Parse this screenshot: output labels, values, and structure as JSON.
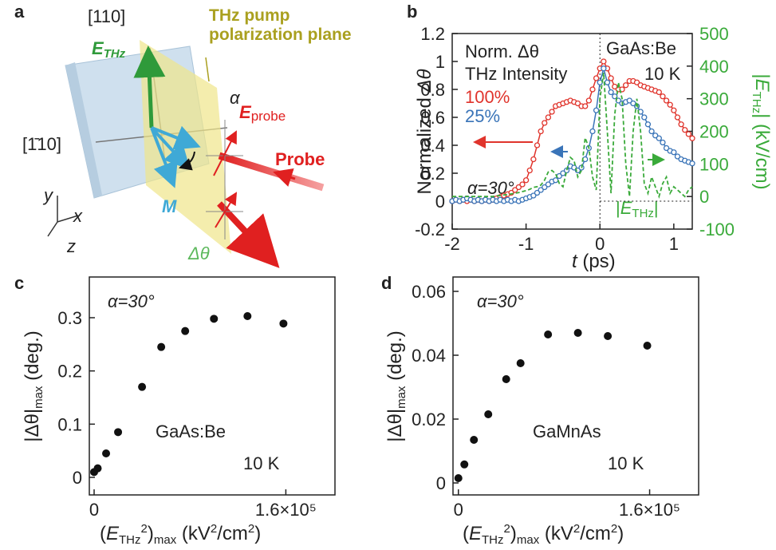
{
  "diagram": {
    "panel": "a",
    "labels": {
      "dir110": "[110]",
      "e": "E",
      "thz": "THz",
      "pump1": "THz pump",
      "pump2": "polarization plane",
      "dir1bar10": "[1̄10]",
      "alpha": "α",
      "e2": "E",
      "probe_sub": "probe",
      "probe": "Probe",
      "m": "M",
      "dtheta": "Δθ",
      "y": "y",
      "x": "x",
      "z": "z"
    }
  },
  "chart_data": [
    {
      "type": "line",
      "panel": "b",
      "ylabel": [
        "Normalized ",
        "Δθ"
      ],
      "xlabel": [
        "t",
        " (ps)"
      ],
      "y2label": [
        "|",
        "E",
        "THz",
        "| (kV/cm)"
      ],
      "legend_title": [
        "Norm. Δθ",
        "THz Intensity"
      ],
      "annotations": {
        "alpha": "α=30°",
        "sample": "GaAs:Be",
        "temp": "10 K",
        "eabs": [
          "|",
          "E",
          "THz",
          "|"
        ]
      },
      "xlim": [
        -2,
        1.25
      ],
      "xticks": [
        -2,
        -1,
        0,
        1
      ],
      "ylim": [
        -0.2,
        1.2
      ],
      "yticks": [
        -0.2,
        0,
        0.2,
        0.4,
        0.6,
        0.8,
        1,
        1.2
      ],
      "y2lim": [
        -100,
        500
      ],
      "y2ticks": [
        -100,
        0,
        100,
        200,
        300,
        400,
        500
      ],
      "y2color": "#3aaa3a",
      "x": [
        -2,
        -1.95,
        -1.9,
        -1.85,
        -1.8,
        -1.75,
        -1.7,
        -1.65,
        -1.6,
        -1.55,
        -1.5,
        -1.45,
        -1.4,
        -1.35,
        -1.3,
        -1.25,
        -1.2,
        -1.15,
        -1.1,
        -1.05,
        -1,
        -0.95,
        -0.9,
        -0.85,
        -0.8,
        -0.75,
        -0.7,
        -0.65,
        -0.6,
        -0.55,
        -0.5,
        -0.45,
        -0.4,
        -0.35,
        -0.3,
        -0.25,
        -0.2,
        -0.15,
        -0.1,
        -0.05,
        0,
        0.05,
        0.1,
        0.15,
        0.2,
        0.25,
        0.3,
        0.35,
        0.4,
        0.45,
        0.5,
        0.55,
        0.6,
        0.65,
        0.7,
        0.75,
        0.8,
        0.85,
        0.9,
        0.95,
        1,
        1.05,
        1.1,
        1.15,
        1.2,
        1.25
      ],
      "series": [
        {
          "name": "100%",
          "color": "#e0342c",
          "style": "markers",
          "values": [
            0,
            0.01,
            0,
            0.01,
            0,
            0.01,
            0,
            0.01,
            0,
            0.01,
            0,
            0.01,
            0.02,
            0.03,
            0.04,
            0.05,
            0.06,
            0.08,
            0.1,
            0.12,
            0.15,
            0.22,
            0.3,
            0.4,
            0.5,
            0.56,
            0.6,
            0.64,
            0.68,
            0.69,
            0.7,
            0.71,
            0.72,
            0.71,
            0.7,
            0.68,
            0.68,
            0.72,
            0.8,
            0.88,
            0.95,
            1,
            0.95,
            0.88,
            0.82,
            0.8,
            0.8,
            0.83,
            0.86,
            0.86,
            0.85,
            0.83,
            0.82,
            0.81,
            0.8,
            0.79,
            0.78,
            0.75,
            0.72,
            0.69,
            0.65,
            0.6,
            0.55,
            0.51,
            0.48,
            0.45
          ]
        },
        {
          "name": "25%",
          "color": "#3a74b8",
          "style": "markers",
          "values": [
            0,
            0.01,
            0,
            0.01,
            0.02,
            0.01,
            0,
            0.01,
            0,
            0.01,
            0,
            0.01,
            0,
            0.01,
            0,
            0.01,
            0,
            0.01,
            0,
            0.01,
            0.02,
            0.03,
            0.04,
            0.06,
            0.08,
            0.1,
            0.12,
            0.14,
            0.15,
            0.18,
            0.2,
            0.22,
            0.25,
            0.24,
            0.22,
            0.24,
            0.3,
            0.38,
            0.5,
            0.65,
            0.85,
            0.95,
            0.85,
            0.78,
            0.75,
            0.72,
            0.7,
            0.71,
            0.72,
            0.7,
            0.68,
            0.64,
            0.6,
            0.55,
            0.5,
            0.47,
            0.45,
            0.42,
            0.38,
            0.36,
            0.35,
            0.32,
            0.3,
            0.29,
            0.28,
            0.27
          ]
        },
        {
          "color": "#3aaa3a",
          "style": "dashed",
          "axis": "y2",
          "values": [
            0,
            0,
            0,
            0,
            0,
            0,
            0,
            0,
            0,
            0,
            0,
            0,
            2,
            3,
            5,
            6,
            8,
            10,
            12,
            15,
            18,
            22,
            28,
            30,
            35,
            50,
            75,
            80,
            70,
            40,
            30,
            80,
            120,
            110,
            60,
            80,
            180,
            150,
            60,
            20,
            300,
            380,
            200,
            10,
            250,
            350,
            300,
            100,
            0,
            200,
            300,
            200,
            40,
            10,
            60,
            30,
            0,
            40,
            60,
            10,
            30,
            20,
            10,
            0,
            20,
            30
          ]
        }
      ]
    },
    {
      "type": "scatter",
      "panel": "c",
      "color": "#111",
      "ylabel": [
        "|Δθ|",
        "max",
        " (deg.)"
      ],
      "xlabel": [
        "(",
        "E",
        "THz",
        "2",
        ")",
        "max",
        " (kV",
        "2",
        "/cm",
        "2",
        ")"
      ],
      "annotations": {
        "alpha": "α=30°",
        "sample": "GaAs:Be",
        "temp": "10 K"
      },
      "xlim": [
        -4000,
        201000
      ],
      "xticks": [
        0,
        {
          "value": 160000,
          "label": "1.6×10⁵"
        }
      ],
      "ylim": [
        -0.033,
        0.3765
      ],
      "yticks": [
        0,
        0.1,
        0.2,
        0.3
      ],
      "x": [
        0,
        3000,
        10000,
        20000,
        40000,
        56000,
        76000,
        100000,
        128000,
        158000
      ],
      "values": [
        0.01,
        0.017,
        0.045,
        0.085,
        0.17,
        0.245,
        0.275,
        0.298,
        0.303,
        0.289
      ]
    },
    {
      "type": "scatter",
      "panel": "d",
      "color": "#111",
      "ylabel": [
        "|Δθ|",
        "max",
        " (deg.)"
      ],
      "xlabel": [
        "(",
        "E",
        "THz",
        "2",
        ")",
        "max",
        " (kV",
        "2",
        "/cm",
        "2",
        ")"
      ],
      "annotations": {
        "alpha": "α=30°",
        "sample": "GaMnAs",
        "temp": "10 K"
      },
      "xlim": [
        -4500,
        201000
      ],
      "xticks": [
        0,
        {
          "value": 160000,
          "label": "1.6×10⁵"
        }
      ],
      "ylim": [
        -0.00375,
        0.0645
      ],
      "yticks": [
        0,
        0.02,
        0.04,
        0.06
      ],
      "x": [
        0,
        5000,
        13000,
        25000,
        40000,
        52000,
        75000,
        100000,
        125000,
        158000
      ],
      "values": [
        0.0015,
        0.0058,
        0.0135,
        0.0215,
        0.0325,
        0.0375,
        0.0465,
        0.047,
        0.046,
        0.043
      ]
    }
  ]
}
